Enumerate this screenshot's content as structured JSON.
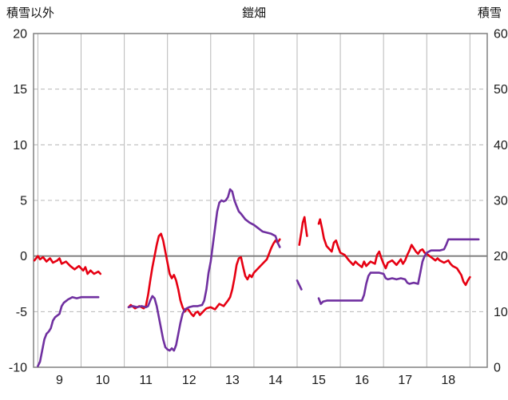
{
  "chart_data": {
    "type": "line",
    "title": "鎧畑",
    "left_axis": {
      "label": "積雪以外",
      "min": -10,
      "max": 20,
      "ticks": [
        20,
        15,
        10,
        5,
        0,
        -5,
        -10
      ]
    },
    "right_axis": {
      "label": "積雪",
      "min": 0,
      "max": 60,
      "ticks": [
        60,
        50,
        40,
        30,
        20,
        10,
        0
      ]
    },
    "x_axis": {
      "min": 8.4,
      "max": 18.9,
      "labels": [
        9,
        10,
        11,
        12,
        13,
        14,
        15,
        16,
        17,
        18
      ],
      "gridlines": [
        8.5,
        9.5,
        10.5,
        11.5,
        12.5,
        13.5,
        14.5,
        15.5,
        16.5,
        17.5,
        18.5
      ]
    },
    "grid": true,
    "zero_line": 0,
    "colors": {
      "grid": "#b8b8b8",
      "border": "#808080",
      "zero": "#7a7a7a",
      "text": "#1a1a1a"
    },
    "series": [
      {
        "name": "red-series",
        "axis": "left",
        "color": "#e60012",
        "segments": [
          [
            [
              8.42,
              -0.4
            ],
            [
              8.5,
              0.0
            ],
            [
              8.55,
              -0.3
            ],
            [
              8.62,
              -0.1
            ],
            [
              8.7,
              -0.5
            ],
            [
              8.78,
              -0.2
            ],
            [
              8.85,
              -0.6
            ],
            [
              8.95,
              -0.4
            ],
            [
              9.0,
              -0.2
            ],
            [
              9.05,
              -0.7
            ],
            [
              9.15,
              -0.5
            ],
            [
              9.25,
              -0.9
            ],
            [
              9.35,
              -1.2
            ],
            [
              9.45,
              -0.9
            ],
            [
              9.55,
              -1.3
            ],
            [
              9.6,
              -1.0
            ],
            [
              9.65,
              -1.6
            ],
            [
              9.72,
              -1.3
            ],
            [
              9.8,
              -1.6
            ],
            [
              9.9,
              -1.4
            ],
            [
              9.95,
              -1.6
            ]
          ],
          [
            [
              10.6,
              -4.6
            ],
            [
              10.65,
              -4.4
            ],
            [
              10.75,
              -4.7
            ],
            [
              10.85,
              -4.5
            ],
            [
              10.95,
              -4.7
            ],
            [
              11.0,
              -4.5
            ],
            [
              11.05,
              -3.5
            ],
            [
              11.1,
              -2.2
            ],
            [
              11.15,
              -1.0
            ],
            [
              11.2,
              0.0
            ],
            [
              11.25,
              1.0
            ],
            [
              11.3,
              1.8
            ],
            [
              11.35,
              2.0
            ],
            [
              11.4,
              1.4
            ],
            [
              11.45,
              0.4
            ],
            [
              11.5,
              -0.6
            ],
            [
              11.55,
              -1.6
            ],
            [
              11.6,
              -2.0
            ],
            [
              11.65,
              -1.7
            ],
            [
              11.7,
              -2.2
            ],
            [
              11.75,
              -3.0
            ],
            [
              11.8,
              -4.0
            ],
            [
              11.85,
              -4.6
            ],
            [
              11.9,
              -5.0
            ],
            [
              11.95,
              -4.7
            ],
            [
              12.0,
              -4.9
            ],
            [
              12.05,
              -5.2
            ],
            [
              12.1,
              -5.4
            ],
            [
              12.15,
              -5.1
            ],
            [
              12.2,
              -5.0
            ],
            [
              12.25,
              -5.3
            ],
            [
              12.3,
              -5.1
            ],
            [
              12.35,
              -4.9
            ],
            [
              12.4,
              -4.7
            ],
            [
              12.5,
              -4.6
            ],
            [
              12.6,
              -4.8
            ],
            [
              12.7,
              -4.3
            ],
            [
              12.8,
              -4.5
            ],
            [
              12.9,
              -4.0
            ],
            [
              12.95,
              -3.7
            ],
            [
              13.0,
              -3.0
            ],
            [
              13.05,
              -2.0
            ],
            [
              13.1,
              -0.8
            ],
            [
              13.15,
              -0.2
            ],
            [
              13.2,
              -0.1
            ],
            [
              13.25,
              -1.0
            ],
            [
              13.3,
              -1.8
            ],
            [
              13.35,
              -2.1
            ],
            [
              13.4,
              -1.7
            ],
            [
              13.45,
              -1.9
            ],
            [
              13.5,
              -1.5
            ],
            [
              13.6,
              -1.1
            ],
            [
              13.7,
              -0.7
            ],
            [
              13.8,
              -0.3
            ],
            [
              13.85,
              0.2
            ],
            [
              13.9,
              0.7
            ],
            [
              13.95,
              1.1
            ],
            [
              14.0,
              1.4
            ],
            [
              14.05,
              1.2
            ],
            [
              14.1,
              1.5
            ]
          ],
          [
            [
              14.55,
              1.0
            ],
            [
              14.6,
              2.2
            ],
            [
              14.63,
              3.0
            ],
            [
              14.67,
              3.5
            ],
            [
              14.7,
              2.6
            ],
            [
              14.73,
              1.8
            ]
          ],
          [
            [
              15.0,
              2.9
            ],
            [
              15.03,
              3.3
            ],
            [
              15.08,
              2.4
            ],
            [
              15.12,
              1.6
            ],
            [
              15.18,
              0.9
            ],
            [
              15.25,
              0.6
            ],
            [
              15.3,
              0.4
            ],
            [
              15.35,
              1.2
            ],
            [
              15.4,
              1.4
            ],
            [
              15.45,
              0.8
            ],
            [
              15.5,
              0.3
            ],
            [
              15.6,
              0.1
            ],
            [
              15.7,
              -0.4
            ],
            [
              15.8,
              -0.8
            ],
            [
              15.85,
              -0.5
            ],
            [
              15.9,
              -0.7
            ],
            [
              16.0,
              -1.0
            ],
            [
              16.05,
              -0.5
            ],
            [
              16.1,
              -0.9
            ],
            [
              16.2,
              -0.5
            ],
            [
              16.3,
              -0.7
            ],
            [
              16.35,
              0.1
            ],
            [
              16.4,
              0.4
            ],
            [
              16.45,
              -0.2
            ],
            [
              16.5,
              -0.7
            ],
            [
              16.55,
              -1.1
            ],
            [
              16.6,
              -0.6
            ],
            [
              16.7,
              -0.4
            ],
            [
              16.8,
              -0.8
            ],
            [
              16.9,
              -0.3
            ],
            [
              16.95,
              -0.7
            ],
            [
              17.0,
              -0.4
            ],
            [
              17.05,
              0.1
            ],
            [
              17.1,
              0.5
            ],
            [
              17.15,
              1.0
            ],
            [
              17.2,
              0.7
            ],
            [
              17.25,
              0.4
            ],
            [
              17.3,
              0.2
            ],
            [
              17.35,
              0.5
            ],
            [
              17.4,
              0.6
            ],
            [
              17.45,
              0.3
            ],
            [
              17.5,
              0.2
            ],
            [
              17.6,
              -0.1
            ],
            [
              17.7,
              -0.4
            ],
            [
              17.75,
              -0.2
            ],
            [
              17.8,
              -0.4
            ],
            [
              17.9,
              -0.6
            ],
            [
              18.0,
              -0.4
            ],
            [
              18.05,
              -0.7
            ],
            [
              18.1,
              -0.9
            ],
            [
              18.2,
              -1.1
            ],
            [
              18.3,
              -1.7
            ],
            [
              18.35,
              -2.3
            ],
            [
              18.4,
              -2.6
            ],
            [
              18.45,
              -2.2
            ],
            [
              18.5,
              -1.9
            ]
          ]
        ]
      },
      {
        "name": "purple-series",
        "axis": "right",
        "color": "#7030a0",
        "segments": [
          [
            [
              8.5,
              0.2
            ],
            [
              8.55,
              1
            ],
            [
              8.6,
              3
            ],
            [
              8.65,
              5
            ],
            [
              8.7,
              6
            ],
            [
              8.75,
              6.4
            ],
            [
              8.8,
              7
            ],
            [
              8.85,
              8.4
            ],
            [
              8.9,
              9
            ],
            [
              9.0,
              9.6
            ],
            [
              9.05,
              11
            ],
            [
              9.1,
              11.6
            ],
            [
              9.2,
              12.2
            ],
            [
              9.3,
              12.6
            ],
            [
              9.4,
              12.4
            ],
            [
              9.5,
              12.6
            ],
            [
              9.6,
              12.6
            ],
            [
              9.7,
              12.6
            ],
            [
              9.8,
              12.6
            ],
            [
              9.9,
              12.6
            ]
          ],
          [
            [
              10.6,
              10.8
            ],
            [
              10.7,
              11
            ],
            [
              10.8,
              10.8
            ],
            [
              10.9,
              11
            ],
            [
              11.0,
              10.8
            ],
            [
              11.05,
              11
            ],
            [
              11.1,
              12
            ],
            [
              11.15,
              12.8
            ],
            [
              11.2,
              12.4
            ],
            [
              11.25,
              11
            ],
            [
              11.3,
              9
            ],
            [
              11.35,
              7
            ],
            [
              11.4,
              5
            ],
            [
              11.45,
              3.6
            ],
            [
              11.5,
              3.2
            ],
            [
              11.55,
              3
            ],
            [
              11.6,
              3.4
            ],
            [
              11.65,
              3
            ],
            [
              11.7,
              4
            ],
            [
              11.75,
              6
            ],
            [
              11.8,
              8
            ],
            [
              11.85,
              9.6
            ],
            [
              11.9,
              10.4
            ],
            [
              12.0,
              10.8
            ],
            [
              12.1,
              11
            ],
            [
              12.2,
              11
            ],
            [
              12.3,
              11.2
            ],
            [
              12.35,
              12
            ],
            [
              12.4,
              14
            ],
            [
              12.45,
              17
            ],
            [
              12.5,
              19
            ],
            [
              12.55,
              22
            ],
            [
              12.6,
              25
            ],
            [
              12.65,
              28
            ],
            [
              12.7,
              29.6
            ],
            [
              12.75,
              30
            ],
            [
              12.8,
              29.8
            ],
            [
              12.85,
              30
            ],
            [
              12.9,
              30.6
            ],
            [
              12.95,
              32
            ],
            [
              13.0,
              31.6
            ],
            [
              13.05,
              30
            ],
            [
              13.1,
              29
            ],
            [
              13.15,
              28
            ],
            [
              13.2,
              27.6
            ],
            [
              13.3,
              26.6
            ],
            [
              13.4,
              26
            ],
            [
              13.5,
              25.6
            ],
            [
              13.6,
              25
            ],
            [
              13.7,
              24.4
            ],
            [
              13.8,
              24.2
            ],
            [
              13.9,
              24
            ],
            [
              14.0,
              23.6
            ],
            [
              14.05,
              22.4
            ],
            [
              14.1,
              21.6
            ]
          ],
          [
            [
              14.5,
              15.6
            ],
            [
              14.55,
              14.8
            ],
            [
              14.6,
              14
            ]
          ],
          [
            [
              15.0,
              12.4
            ],
            [
              15.05,
              11.4
            ],
            [
              15.1,
              11.8
            ],
            [
              15.2,
              12
            ],
            [
              15.3,
              12
            ],
            [
              15.5,
              12
            ],
            [
              15.7,
              12
            ],
            [
              15.9,
              12
            ],
            [
              16.0,
              12
            ],
            [
              16.05,
              13
            ],
            [
              16.1,
              15
            ],
            [
              16.15,
              16.4
            ],
            [
              16.2,
              17
            ],
            [
              16.3,
              17
            ],
            [
              16.4,
              17
            ],
            [
              16.5,
              16.8
            ],
            [
              16.55,
              16
            ],
            [
              16.6,
              15.8
            ],
            [
              16.7,
              16
            ],
            [
              16.8,
              15.8
            ],
            [
              16.9,
              16
            ],
            [
              17.0,
              15.8
            ],
            [
              17.05,
              15.2
            ],
            [
              17.1,
              15
            ],
            [
              17.2,
              15.2
            ],
            [
              17.3,
              15
            ],
            [
              17.35,
              17
            ],
            [
              17.4,
              19
            ],
            [
              17.45,
              20
            ],
            [
              17.5,
              20.6
            ],
            [
              17.6,
              21
            ],
            [
              17.7,
              21
            ],
            [
              17.8,
              21
            ],
            [
              17.9,
              21.2
            ],
            [
              17.95,
              22
            ],
            [
              18.0,
              23
            ],
            [
              18.1,
              23
            ],
            [
              18.2,
              23
            ],
            [
              18.3,
              23
            ],
            [
              18.4,
              23
            ],
            [
              18.5,
              23
            ],
            [
              18.6,
              23
            ],
            [
              18.7,
              23
            ]
          ]
        ]
      }
    ]
  }
}
